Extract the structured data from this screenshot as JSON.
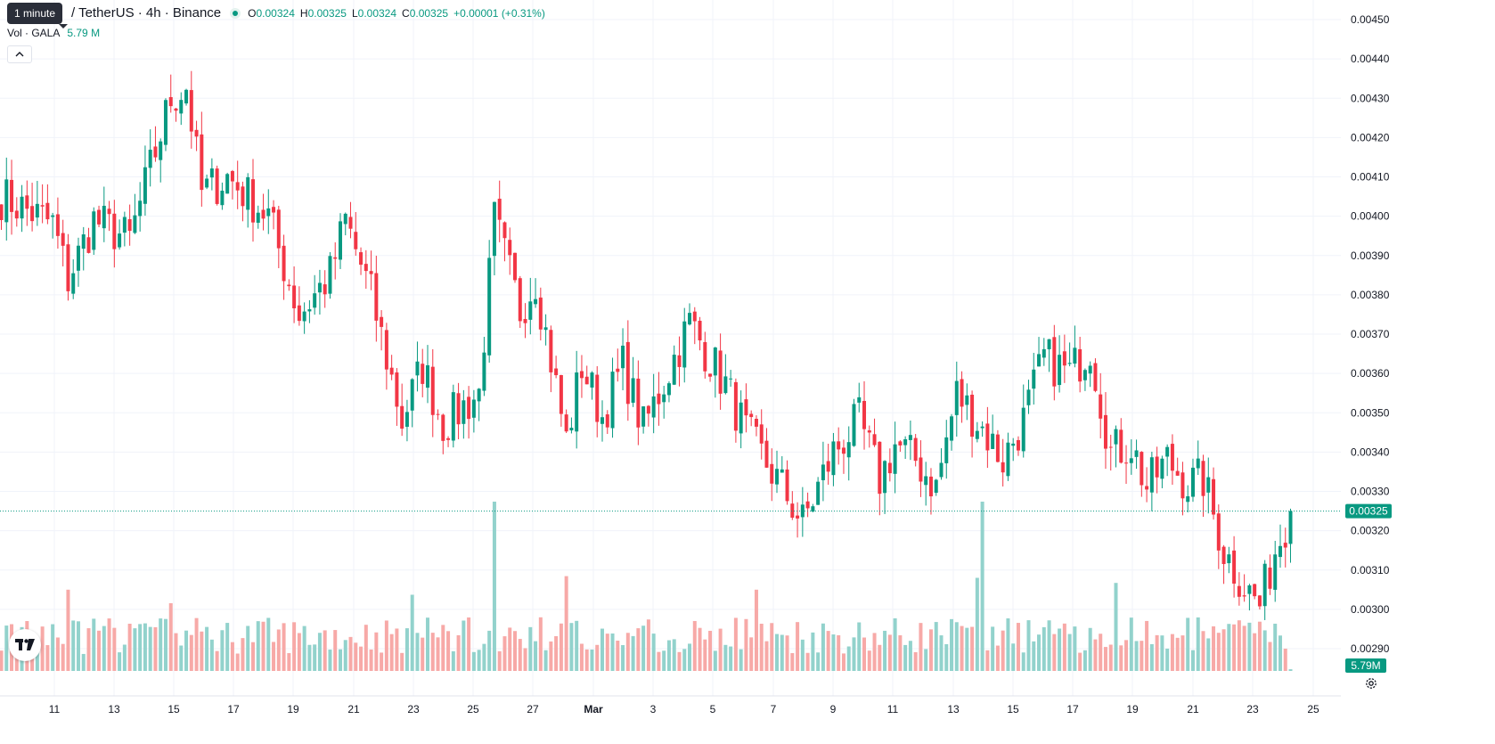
{
  "header": {
    "tooltip": "1 minute",
    "symbol": "/ TetherUS · 4h · Binance",
    "ohlc": {
      "o_label": "O",
      "o": "0.00324",
      "h_label": "H",
      "h": "0.00325",
      "l_label": "L",
      "l": "0.00324",
      "c_label": "C",
      "c": "0.00325",
      "change": "+0.00001 (+0.31%)"
    },
    "volume_label": "Vol · GALA",
    "volume_value": "5.79 M"
  },
  "icons": {
    "collapse": "chevron-up-icon",
    "logo": "tradingview-logo-icon",
    "settings": "gear-icon"
  },
  "colors": {
    "up": "#089981",
    "down": "#f23645",
    "up_volume": "#92d2cc",
    "down_volume": "#f7a9a7",
    "grid": "#f0f3fa",
    "axis_text": "#131722"
  },
  "chart_data": {
    "type": "candlestick",
    "symbol": "GALA / TetherUS",
    "interval": "4h",
    "exchange": "Binance",
    "y_axis": {
      "position": "right",
      "ticks": [
        "0.00450",
        "0.00440",
        "0.00430",
        "0.00420",
        "0.00410",
        "0.00400",
        "0.00390",
        "0.00380",
        "0.00370",
        "0.00360",
        "0.00350",
        "0.00340",
        "0.00330",
        "0.00320",
        "0.00310",
        "0.00300",
        "0.00290"
      ],
      "range": [
        0.00286,
        0.00452
      ]
    },
    "x_axis": {
      "ticks": [
        "11",
        "13",
        "15",
        "17",
        "19",
        "21",
        "23",
        "25",
        "27",
        "Mar",
        "3",
        "5",
        "7",
        "9",
        "11",
        "13",
        "15",
        "17",
        "19",
        "21",
        "23",
        "25"
      ]
    },
    "grid": true,
    "last_price": "0.00325",
    "last_volume": "5.79M",
    "price_anchors": [
      {
        "bar": 0,
        "price": 0.00405
      },
      {
        "bar": 10,
        "price": 0.00398
      },
      {
        "bar": 13,
        "price": 0.00384
      },
      {
        "bar": 18,
        "price": 0.00399
      },
      {
        "bar": 25,
        "price": 0.00394
      },
      {
        "bar": 33,
        "price": 0.0043
      },
      {
        "bar": 36,
        "price": 0.00433
      },
      {
        "bar": 39,
        "price": 0.00406
      },
      {
        "bar": 44,
        "price": 0.0041
      },
      {
        "bar": 52,
        "price": 0.004
      },
      {
        "bar": 58,
        "price": 0.00375
      },
      {
        "bar": 64,
        "price": 0.00385
      },
      {
        "bar": 67,
        "price": 0.00399
      },
      {
        "bar": 72,
        "price": 0.0038
      },
      {
        "bar": 78,
        "price": 0.00348
      },
      {
        "bar": 82,
        "price": 0.00362
      },
      {
        "bar": 86,
        "price": 0.00347
      },
      {
        "bar": 93,
        "price": 0.00355
      },
      {
        "bar": 96,
        "price": 0.00399
      },
      {
        "bar": 101,
        "price": 0.00376
      },
      {
        "bar": 104,
        "price": 0.00384
      },
      {
        "bar": 110,
        "price": 0.00343
      },
      {
        "bar": 113,
        "price": 0.00362
      },
      {
        "bar": 117,
        "price": 0.00349
      },
      {
        "bar": 121,
        "price": 0.00362
      },
      {
        "bar": 125,
        "price": 0.00346
      },
      {
        "bar": 134,
        "price": 0.00373
      },
      {
        "bar": 141,
        "price": 0.00357
      },
      {
        "bar": 145,
        "price": 0.00345
      },
      {
        "bar": 152,
        "price": 0.00331
      },
      {
        "bar": 156,
        "price": 0.00322
      },
      {
        "bar": 162,
        "price": 0.0034
      },
      {
        "bar": 167,
        "price": 0.00348
      },
      {
        "bar": 171,
        "price": 0.00333
      },
      {
        "bar": 174,
        "price": 0.00342
      },
      {
        "bar": 178,
        "price": 0.00338
      },
      {
        "bar": 182,
        "price": 0.00331
      },
      {
        "bar": 186,
        "price": 0.00355
      },
      {
        "bar": 191,
        "price": 0.00346
      },
      {
        "bar": 195,
        "price": 0.00338
      },
      {
        "bar": 199,
        "price": 0.00348
      },
      {
        "bar": 203,
        "price": 0.00364
      },
      {
        "bar": 208,
        "price": 0.0036
      },
      {
        "bar": 212,
        "price": 0.00367
      },
      {
        "bar": 216,
        "price": 0.0034
      },
      {
        "bar": 220,
        "price": 0.00342
      },
      {
        "bar": 223,
        "price": 0.00331
      },
      {
        "bar": 227,
        "price": 0.00338
      },
      {
        "bar": 231,
        "price": 0.00332
      },
      {
        "bar": 234,
        "price": 0.00333
      },
      {
        "bar": 238,
        "price": 0.00315
      },
      {
        "bar": 242,
        "price": 0.00306
      },
      {
        "bar": 245,
        "price": 0.00301
      },
      {
        "bar": 248,
        "price": 0.00315
      },
      {
        "bar": 251,
        "price": 0.00325
      }
    ],
    "volume_spikes": [
      {
        "bar": 13,
        "value": 0.48
      },
      {
        "bar": 33,
        "value": 0.4
      },
      {
        "bar": 80,
        "value": 0.45
      },
      {
        "bar": 96,
        "value": 1.0
      },
      {
        "bar": 110,
        "value": 0.56
      },
      {
        "bar": 147,
        "value": 0.48
      },
      {
        "bar": 190,
        "value": 0.55
      },
      {
        "bar": 191,
        "value": 1.0
      },
      {
        "bar": 217,
        "value": 0.52
      }
    ]
  }
}
